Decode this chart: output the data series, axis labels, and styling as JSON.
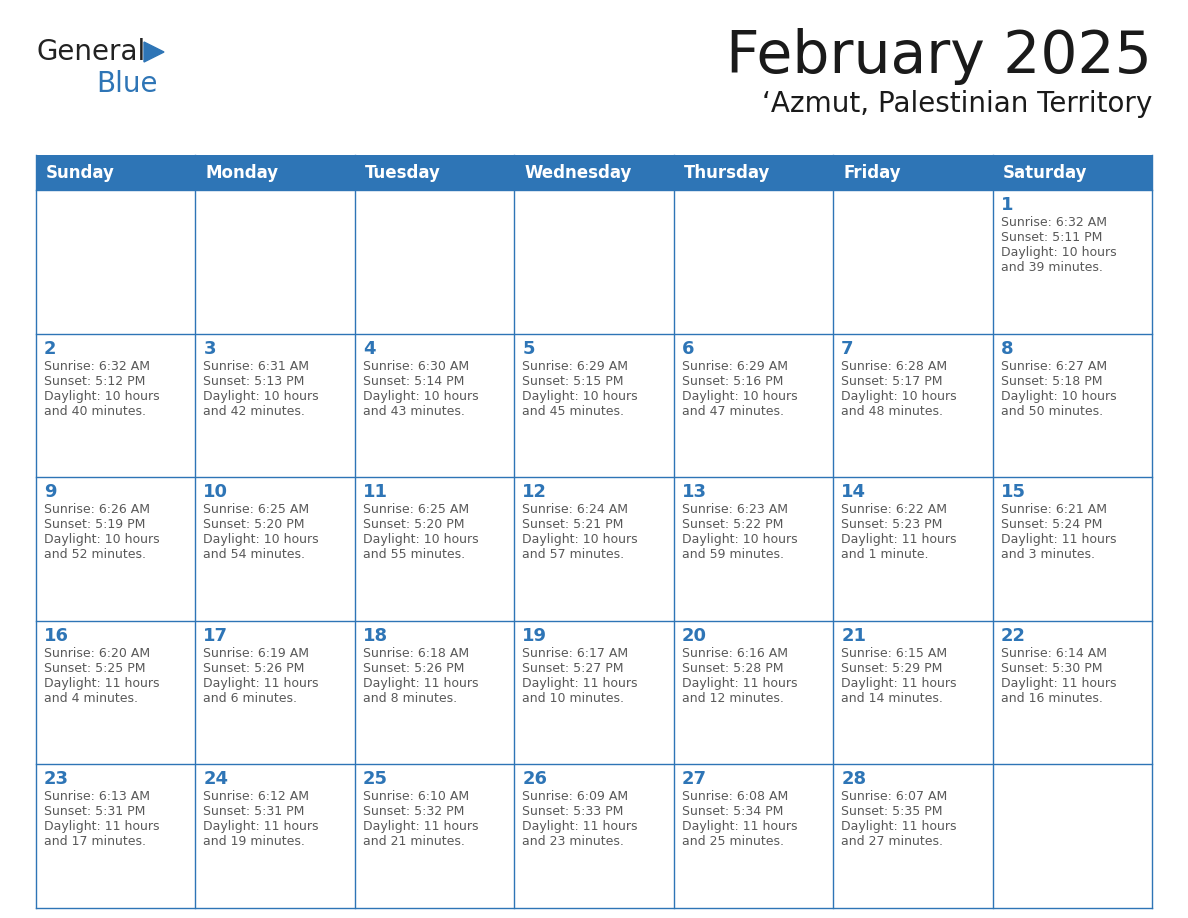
{
  "title": "February 2025",
  "subtitle": "‘Azmut, Palestinian Territory",
  "header_bg": "#2E75B6",
  "header_text_color": "#FFFFFF",
  "cell_border_color": "#2E75B6",
  "day_number_color": "#2E75B6",
  "info_text_color": "#595959",
  "background_color": "#FFFFFF",
  "days_of_week": [
    "Sunday",
    "Monday",
    "Tuesday",
    "Wednesday",
    "Thursday",
    "Friday",
    "Saturday"
  ],
  "calendar_data": [
    [
      null,
      null,
      null,
      null,
      null,
      null,
      {
        "day": 1,
        "sunrise": "6:32 AM",
        "sunset": "5:11 PM",
        "daylight_line1": "Daylight: 10 hours",
        "daylight_line2": "and 39 minutes."
      }
    ],
    [
      {
        "day": 2,
        "sunrise": "6:32 AM",
        "sunset": "5:12 PM",
        "daylight_line1": "Daylight: 10 hours",
        "daylight_line2": "and 40 minutes."
      },
      {
        "day": 3,
        "sunrise": "6:31 AM",
        "sunset": "5:13 PM",
        "daylight_line1": "Daylight: 10 hours",
        "daylight_line2": "and 42 minutes."
      },
      {
        "day": 4,
        "sunrise": "6:30 AM",
        "sunset": "5:14 PM",
        "daylight_line1": "Daylight: 10 hours",
        "daylight_line2": "and 43 minutes."
      },
      {
        "day": 5,
        "sunrise": "6:29 AM",
        "sunset": "5:15 PM",
        "daylight_line1": "Daylight: 10 hours",
        "daylight_line2": "and 45 minutes."
      },
      {
        "day": 6,
        "sunrise": "6:29 AM",
        "sunset": "5:16 PM",
        "daylight_line1": "Daylight: 10 hours",
        "daylight_line2": "and 47 minutes."
      },
      {
        "day": 7,
        "sunrise": "6:28 AM",
        "sunset": "5:17 PM",
        "daylight_line1": "Daylight: 10 hours",
        "daylight_line2": "and 48 minutes."
      },
      {
        "day": 8,
        "sunrise": "6:27 AM",
        "sunset": "5:18 PM",
        "daylight_line1": "Daylight: 10 hours",
        "daylight_line2": "and 50 minutes."
      }
    ],
    [
      {
        "day": 9,
        "sunrise": "6:26 AM",
        "sunset": "5:19 PM",
        "daylight_line1": "Daylight: 10 hours",
        "daylight_line2": "and 52 minutes."
      },
      {
        "day": 10,
        "sunrise": "6:25 AM",
        "sunset": "5:20 PM",
        "daylight_line1": "Daylight: 10 hours",
        "daylight_line2": "and 54 minutes."
      },
      {
        "day": 11,
        "sunrise": "6:25 AM",
        "sunset": "5:20 PM",
        "daylight_line1": "Daylight: 10 hours",
        "daylight_line2": "and 55 minutes."
      },
      {
        "day": 12,
        "sunrise": "6:24 AM",
        "sunset": "5:21 PM",
        "daylight_line1": "Daylight: 10 hours",
        "daylight_line2": "and 57 minutes."
      },
      {
        "day": 13,
        "sunrise": "6:23 AM",
        "sunset": "5:22 PM",
        "daylight_line1": "Daylight: 10 hours",
        "daylight_line2": "and 59 minutes."
      },
      {
        "day": 14,
        "sunrise": "6:22 AM",
        "sunset": "5:23 PM",
        "daylight_line1": "Daylight: 11 hours",
        "daylight_line2": "and 1 minute."
      },
      {
        "day": 15,
        "sunrise": "6:21 AM",
        "sunset": "5:24 PM",
        "daylight_line1": "Daylight: 11 hours",
        "daylight_line2": "and 3 minutes."
      }
    ],
    [
      {
        "day": 16,
        "sunrise": "6:20 AM",
        "sunset": "5:25 PM",
        "daylight_line1": "Daylight: 11 hours",
        "daylight_line2": "and 4 minutes."
      },
      {
        "day": 17,
        "sunrise": "6:19 AM",
        "sunset": "5:26 PM",
        "daylight_line1": "Daylight: 11 hours",
        "daylight_line2": "and 6 minutes."
      },
      {
        "day": 18,
        "sunrise": "6:18 AM",
        "sunset": "5:26 PM",
        "daylight_line1": "Daylight: 11 hours",
        "daylight_line2": "and 8 minutes."
      },
      {
        "day": 19,
        "sunrise": "6:17 AM",
        "sunset": "5:27 PM",
        "daylight_line1": "Daylight: 11 hours",
        "daylight_line2": "and 10 minutes."
      },
      {
        "day": 20,
        "sunrise": "6:16 AM",
        "sunset": "5:28 PM",
        "daylight_line1": "Daylight: 11 hours",
        "daylight_line2": "and 12 minutes."
      },
      {
        "day": 21,
        "sunrise": "6:15 AM",
        "sunset": "5:29 PM",
        "daylight_line1": "Daylight: 11 hours",
        "daylight_line2": "and 14 minutes."
      },
      {
        "day": 22,
        "sunrise": "6:14 AM",
        "sunset": "5:30 PM",
        "daylight_line1": "Daylight: 11 hours",
        "daylight_line2": "and 16 minutes."
      }
    ],
    [
      {
        "day": 23,
        "sunrise": "6:13 AM",
        "sunset": "5:31 PM",
        "daylight_line1": "Daylight: 11 hours",
        "daylight_line2": "and 17 minutes."
      },
      {
        "day": 24,
        "sunrise": "6:12 AM",
        "sunset": "5:31 PM",
        "daylight_line1": "Daylight: 11 hours",
        "daylight_line2": "and 19 minutes."
      },
      {
        "day": 25,
        "sunrise": "6:10 AM",
        "sunset": "5:32 PM",
        "daylight_line1": "Daylight: 11 hours",
        "daylight_line2": "and 21 minutes."
      },
      {
        "day": 26,
        "sunrise": "6:09 AM",
        "sunset": "5:33 PM",
        "daylight_line1": "Daylight: 11 hours",
        "daylight_line2": "and 23 minutes."
      },
      {
        "day": 27,
        "sunrise": "6:08 AM",
        "sunset": "5:34 PM",
        "daylight_line1": "Daylight: 11 hours",
        "daylight_line2": "and 25 minutes."
      },
      {
        "day": 28,
        "sunrise": "6:07 AM",
        "sunset": "5:35 PM",
        "daylight_line1": "Daylight: 11 hours",
        "daylight_line2": "and 27 minutes."
      },
      null
    ]
  ],
  "logo_general_color": "#222222",
  "logo_blue_color": "#2E75B6",
  "logo_triangle_color": "#2E75B6"
}
